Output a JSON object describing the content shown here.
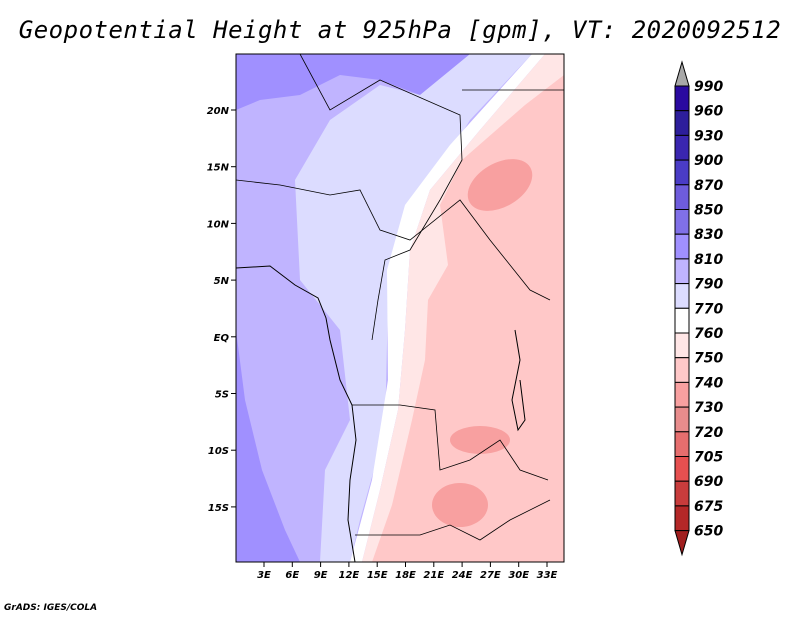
{
  "title": "Geopotential Height at 925hPa [gpm], VT: 2020092512",
  "credit": "GrADS: IGES/COLA",
  "lat_labels": [
    "20N",
    "15N",
    "10N",
    "5N",
    "EQ",
    "5S",
    "10S",
    "15S"
  ],
  "lon_labels": [
    "3E",
    "6E",
    "9E",
    "12E",
    "15E",
    "18E",
    "21E",
    "24E",
    "27E",
    "30E",
    "33E"
  ],
  "colorbar": {
    "labels": [
      "990",
      "960",
      "930",
      "900",
      "870",
      "850",
      "830",
      "810",
      "790",
      "770",
      "760",
      "750",
      "740",
      "730",
      "720",
      "705",
      "690",
      "675",
      "650"
    ],
    "colors": [
      "#2a0aa0",
      "#2d1e9b",
      "#3a26b0",
      "#4a3cc6",
      "#6e5cdc",
      "#8070e8",
      "#a090ff",
      "#c0b4ff",
      "#dcdcff",
      "#ffffff",
      "#ffe6e6",
      "#ffc8c8",
      "#f8a0a0",
      "#e88c8c",
      "#e66e6e",
      "#e65050",
      "#c83c3c",
      "#b42828"
    ],
    "top_arrow_color": "#a8a8a8",
    "bottom_arrow_color": "#a01e1e"
  },
  "map_extent": {
    "lon": [
      0,
      35
    ],
    "lat": [
      -20,
      25
    ]
  }
}
